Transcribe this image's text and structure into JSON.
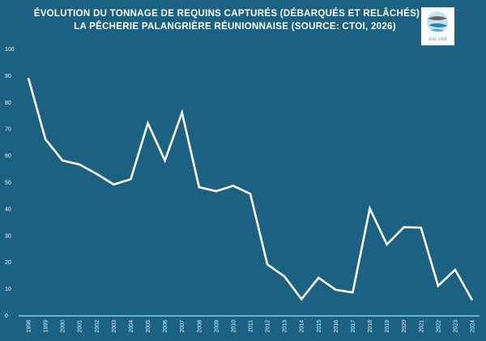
{
  "title": "ÉVOLUTION DU TONNAGE DE REQUINS CAPTURÉS (DÉBARQUÉS ET RELÂCHÉS) DE LA PÊCHERIE PALANGRIÈRE RÉUNIONNAISE (SOURCE: CTOI, 2026)",
  "logo": {
    "text": "iotc ctoi"
  },
  "colors": {
    "background": "#1a6182",
    "line": "#ffffff",
    "axis": "#9fe3f2"
  },
  "chart_data": {
    "type": "line",
    "title": "ÉVOLUTION DU TONNAGE DE REQUINS CAPTURÉS (DÉBARQUÉS ET RELÂCHÉS) DE LA PÊCHERIE PALANGRIÈRE RÉUNIONNAISE (SOURCE: CTOI, 2026)",
    "xlabel": "",
    "ylabel": "",
    "ylim": [
      0,
      100
    ],
    "yticks": [
      0,
      10,
      20,
      30,
      40,
      50,
      60,
      70,
      80,
      90,
      100
    ],
    "grid": false,
    "drop_lines": true,
    "categories": [
      "1998",
      "1999",
      "2000",
      "2001",
      "2002",
      "2003",
      "2004",
      "2005",
      "2006",
      "2007",
      "2008",
      "2009",
      "2010",
      "2011",
      "2012",
      "2013",
      "2014",
      "2015",
      "2016",
      "2017",
      "2018",
      "2019",
      "2020",
      "2021",
      "2022",
      "2023",
      "2024"
    ],
    "values": [
      89,
      66,
      58,
      56.5,
      53,
      49,
      51,
      72,
      58,
      76,
      48,
      46.5,
      48.5,
      45.5,
      19,
      14.5,
      6,
      14,
      9.5,
      8.5,
      40,
      26.5,
      33,
      32.8,
      11,
      17,
      5.6
    ]
  }
}
